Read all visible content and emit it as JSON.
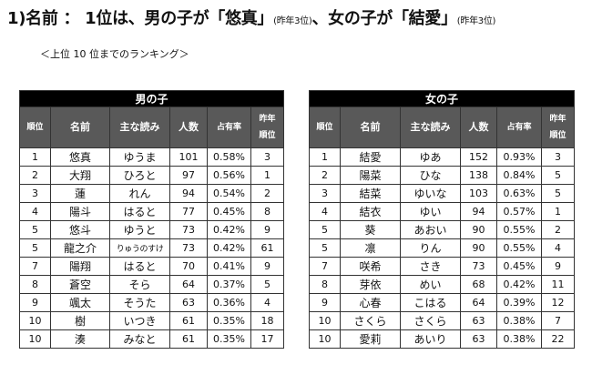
{
  "title": {
    "main_a": "1)名前 ： 1位は、男の子が「悠真」",
    "note_a": "(昨年3位)",
    "main_b": "、女の子が「結愛」",
    "note_b": "(昨年3位)"
  },
  "subtitle": "＜上位 10 位までのランキング＞",
  "columns": {
    "rank": "順位",
    "name": "名前",
    "reading": "主な読み",
    "count": "人数",
    "share": "占有率",
    "prev_line1": "昨年",
    "prev_line2": "順位"
  },
  "boys": {
    "title": "男の子",
    "rows": [
      {
        "rank": "1",
        "name": "悠真",
        "reading": "ゆうま",
        "count": "101",
        "share": "0.58%",
        "prev": "3"
      },
      {
        "rank": "2",
        "name": "大翔",
        "reading": "ひろと",
        "count": "97",
        "share": "0.56%",
        "prev": "1"
      },
      {
        "rank": "3",
        "name": "蓮",
        "reading": "れん",
        "count": "94",
        "share": "0.54%",
        "prev": "2"
      },
      {
        "rank": "4",
        "name": "陽斗",
        "reading": "はると",
        "count": "77",
        "share": "0.45%",
        "prev": "8"
      },
      {
        "rank": "5",
        "name": "悠斗",
        "reading": "ゆうと",
        "count": "73",
        "share": "0.42%",
        "prev": "9"
      },
      {
        "rank": "5",
        "name": "龍之介",
        "reading": "りゅうのすけ",
        "count": "73",
        "share": "0.42%",
        "prev": "61"
      },
      {
        "rank": "7",
        "name": "陽翔",
        "reading": "はると",
        "count": "70",
        "share": "0.41%",
        "prev": "9"
      },
      {
        "rank": "8",
        "name": "蒼空",
        "reading": "そら",
        "count": "64",
        "share": "0.37%",
        "prev": "5"
      },
      {
        "rank": "9",
        "name": "颯太",
        "reading": "そうた",
        "count": "63",
        "share": "0.36%",
        "prev": "4"
      },
      {
        "rank": "10",
        "name": "樹",
        "reading": "いつき",
        "count": "61",
        "share": "0.35%",
        "prev": "18"
      },
      {
        "rank": "10",
        "name": "湊",
        "reading": "みなと",
        "count": "61",
        "share": "0.35%",
        "prev": "17"
      }
    ]
  },
  "girls": {
    "title": "女の子",
    "rows": [
      {
        "rank": "1",
        "name": "結愛",
        "reading": "ゆあ",
        "count": "152",
        "share": "0.93%",
        "prev": "3"
      },
      {
        "rank": "2",
        "name": "陽菜",
        "reading": "ひな",
        "count": "138",
        "share": "0.84%",
        "prev": "5"
      },
      {
        "rank": "3",
        "name": "結菜",
        "reading": "ゆいな",
        "count": "103",
        "share": "0.63%",
        "prev": "5"
      },
      {
        "rank": "4",
        "name": "結衣",
        "reading": "ゆい",
        "count": "94",
        "share": "0.57%",
        "prev": "1"
      },
      {
        "rank": "5",
        "name": "葵",
        "reading": "あおい",
        "count": "90",
        "share": "0.55%",
        "prev": "2"
      },
      {
        "rank": "5",
        "name": "凛",
        "reading": "りん",
        "count": "90",
        "share": "0.55%",
        "prev": "4"
      },
      {
        "rank": "7",
        "name": "咲希",
        "reading": "さき",
        "count": "73",
        "share": "0.45%",
        "prev": "9"
      },
      {
        "rank": "8",
        "name": "芽依",
        "reading": "めい",
        "count": "68",
        "share": "0.42%",
        "prev": "11"
      },
      {
        "rank": "9",
        "name": "心春",
        "reading": "こはる",
        "count": "64",
        "share": "0.39%",
        "prev": "12"
      },
      {
        "rank": "10",
        "name": "さくら",
        "reading": "さくら",
        "count": "63",
        "share": "0.38%",
        "prev": "7"
      },
      {
        "rank": "10",
        "name": "愛莉",
        "reading": "あいり",
        "count": "63",
        "share": "0.38%",
        "prev": "22"
      }
    ]
  }
}
